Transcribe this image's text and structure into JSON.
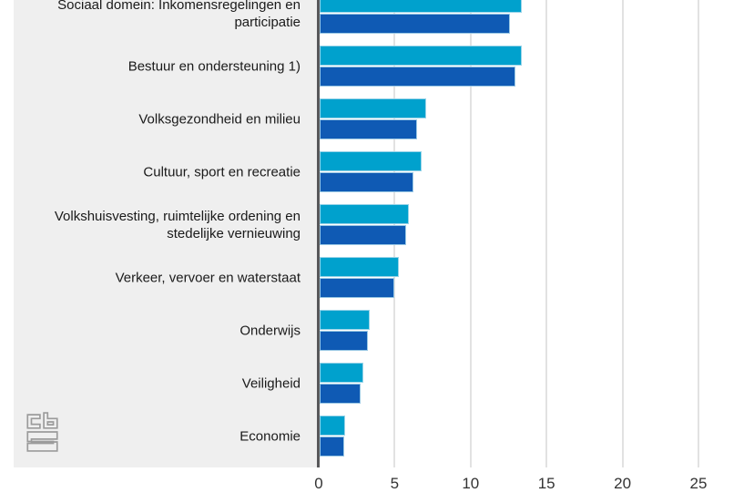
{
  "chart_data": {
    "type": "bar",
    "orientation": "horizontal",
    "title": "",
    "xlabel": "",
    "ylabel": "",
    "categories": [
      "Sociaal domein: Inkomensregelingen en participatie",
      "Bestuur en ondersteuning 1)",
      "Volksgezondheid en milieu",
      "Cultuur, sport en recreatie",
      "Volkshuisvesting, ruimtelijke ordening en stedelijke vernieuwing",
      "Verkeer, vervoer en waterstaat",
      "Onderwijs",
      "Veiligheid",
      "Economie"
    ],
    "series": [
      {
        "name": "",
        "color": "#00a1cd",
        "values": [
          13.3,
          13.3,
          7.0,
          6.7,
          5.9,
          5.2,
          3.3,
          2.9,
          1.7
        ]
      },
      {
        "name": "",
        "color": "#0f5ab4",
        "values": [
          12.5,
          12.9,
          6.4,
          6.2,
          5.7,
          4.9,
          3.2,
          2.7,
          1.6
        ]
      }
    ],
    "x_ticks": [
      0,
      5,
      10,
      15,
      20,
      25
    ],
    "x_tick_labels": [
      "0",
      "5",
      "10",
      "15",
      "20",
      "25"
    ],
    "xlim": [
      0,
      28.7
    ],
    "grid": true,
    "legend_position": "not visible (cropped)"
  },
  "colors": {
    "series1": "#00a1cd",
    "series2": "#0f5ab4",
    "panel_background": "#efefef",
    "axis_line": "#58585a",
    "gridline": "#e2e2e2",
    "category_text": "#1a1a1a",
    "tick_text": "#333333",
    "logo_gray": "#9b9b9b"
  },
  "logo": {
    "name": "cbs-logo"
  }
}
